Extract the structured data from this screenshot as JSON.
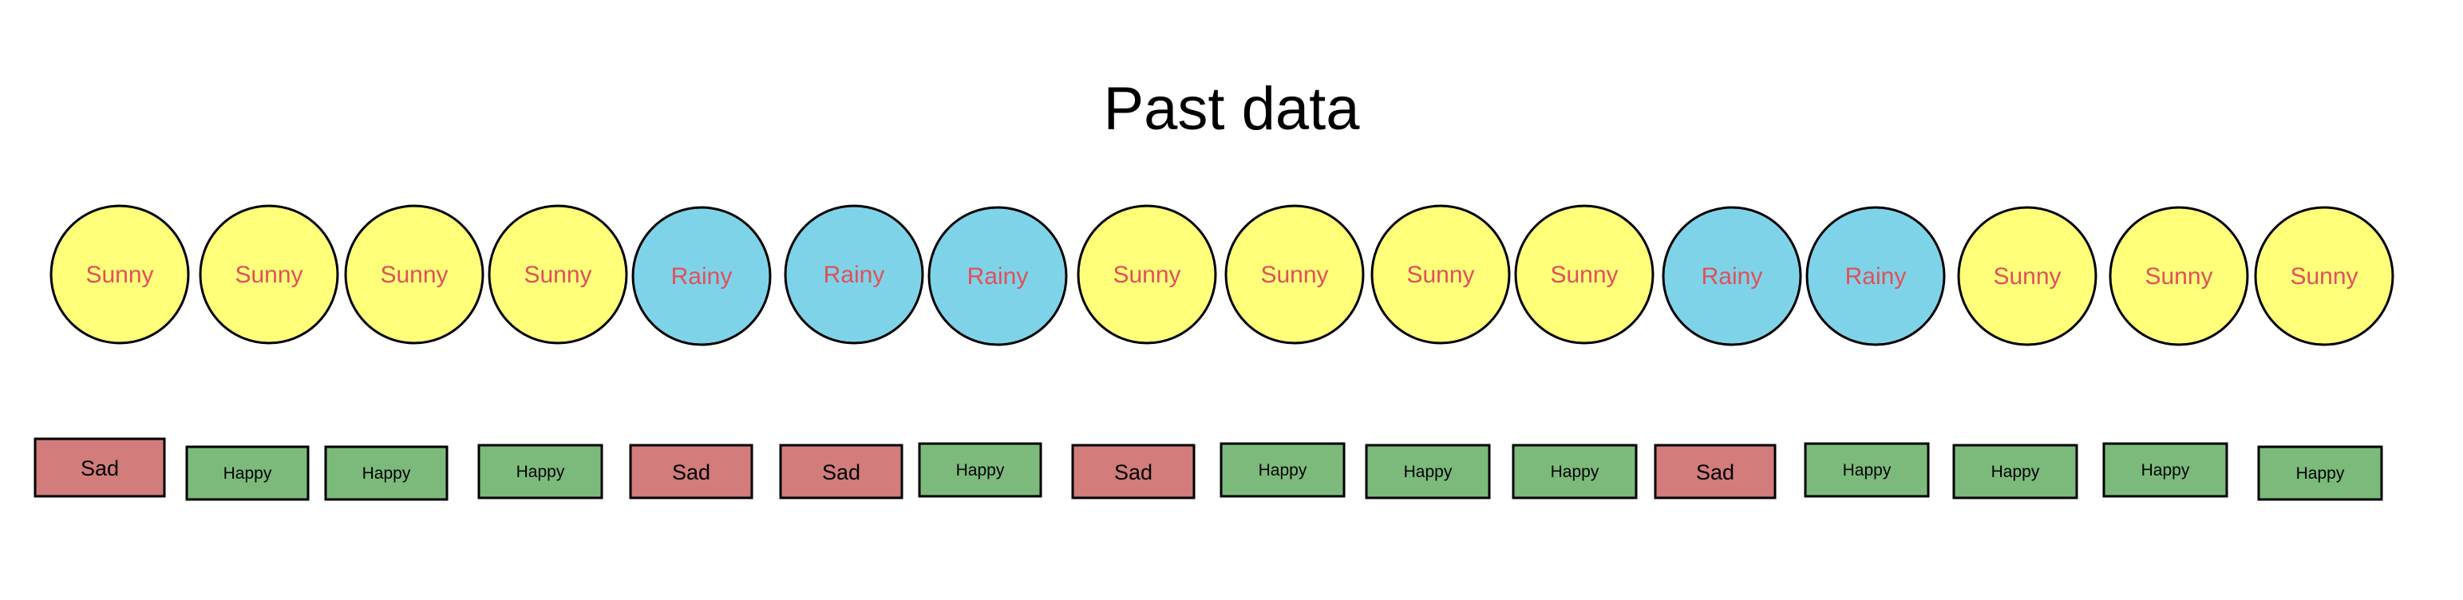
{
  "title": "Past data",
  "colors": {
    "sunny": "#ffff7a",
    "rainy": "#7fd3e8",
    "sad": "#d27c7c",
    "happy": "#7cba7c",
    "circle_text": "#e0505a",
    "box_text": "#000000",
    "stroke": "#000000"
  },
  "weather": [
    "Sunny",
    "Sunny",
    "Sunny",
    "Sunny",
    "Rainy",
    "Rainy",
    "Rainy",
    "Sunny",
    "Sunny",
    "Sunny",
    "Sunny",
    "Rainy",
    "Rainy",
    "Sunny",
    "Sunny",
    "Sunny"
  ],
  "mood": [
    "Sad",
    "Happy",
    "Happy",
    "Happy",
    "Sad",
    "Sad",
    "Happy",
    "Sad",
    "Happy",
    "Happy",
    "Happy",
    "Sad",
    "Happy",
    "Happy",
    "Happy",
    "Happy"
  ]
}
